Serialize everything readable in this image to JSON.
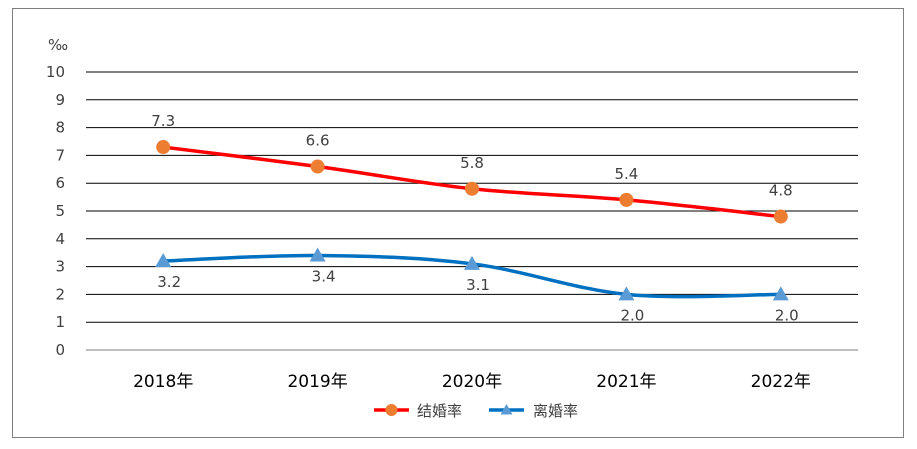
{
  "chart_data": {
    "type": "line",
    "unit": "‰",
    "ylim": [
      0,
      10
    ],
    "yticks": [
      "0",
      "1",
      "2",
      "3",
      "4",
      "5",
      "6",
      "7",
      "8",
      "9",
      "10"
    ],
    "categories": [
      "2018年",
      "2019年",
      "2020年",
      "2021年",
      "2022年"
    ],
    "grid": true,
    "legend_position": "bottom",
    "series": [
      {
        "name": "结婚率",
        "values": [
          7.3,
          6.6,
          5.8,
          5.4,
          4.8
        ],
        "labels": [
          "7.3",
          "6.6",
          "5.8",
          "5.4",
          "4.8"
        ],
        "color": "#ff0000",
        "marker": "circle",
        "marker_color": "#ed7d31"
      },
      {
        "name": "离婚率",
        "values": [
          3.2,
          3.4,
          3.1,
          2.0,
          2.0
        ],
        "labels": [
          "3.2",
          "3.4",
          "3.1",
          "2.0",
          "2.0"
        ],
        "color": "#0070c0",
        "marker": "triangle",
        "marker_color": "#5b9bd5"
      }
    ]
  }
}
